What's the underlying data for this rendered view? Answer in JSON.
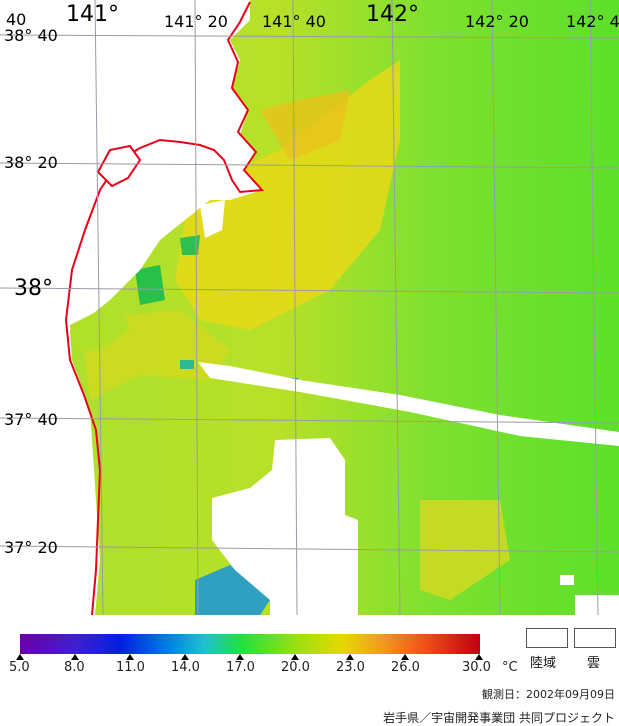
{
  "map": {
    "lon_labels": [
      "141°",
      "141° 20",
      "141° 40",
      "142°",
      "142° 20",
      "142° 4"
    ],
    "lat_labels": [
      "38° 40",
      "38° 20",
      "38°",
      "37° 40",
      "37° 20"
    ],
    "corner_label": "40"
  },
  "legend": {
    "ticks": [
      "5.0",
      "8.0",
      "11.0",
      "14.0",
      "17.0",
      "20.0",
      "23.0",
      "26.0",
      "30.0"
    ],
    "unit": "°C",
    "land_label": "陸域",
    "cloud_label": "雲"
  },
  "observation_date": "観測日：2002年09月09日",
  "credit": "岩手県／宇宙開発事業団 共同プロジェクト",
  "colors": {
    "sea_green": "#5fe02a",
    "sea_yellow": "#c8e020",
    "coastline": "#e8001a",
    "grid": "#9a9aa8"
  }
}
